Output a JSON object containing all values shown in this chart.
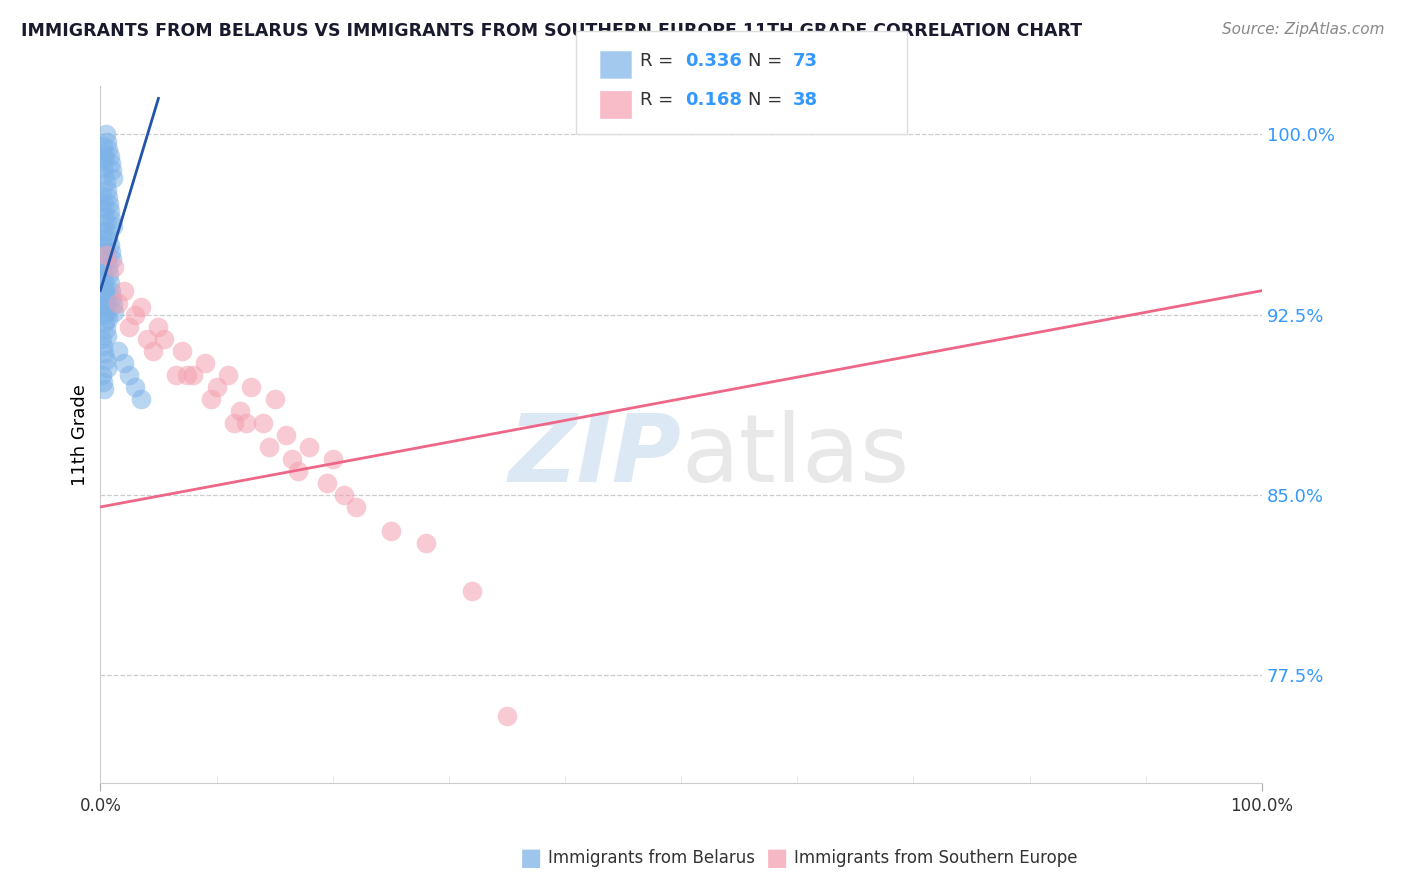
{
  "title": "IMMIGRANTS FROM BELARUS VS IMMIGRANTS FROM SOUTHERN EUROPE 11TH GRADE CORRELATION CHART",
  "source": "Source: ZipAtlas.com",
  "ylabel": "11th Grade",
  "y_ticks": [
    77.5,
    85.0,
    92.5,
    100.0
  ],
  "blue_color": "#7EB3E8",
  "pink_color": "#F4A0B0",
  "trendline_blue": "#2255AA",
  "trendline_pink": "#EE6688",
  "legend_r_blue": "0.336",
  "legend_n_blue": "73",
  "legend_r_pink": "0.168",
  "legend_n_pink": "38",
  "blue_scatter_x": [
    0.2,
    0.3,
    0.4,
    0.5,
    0.6,
    0.7,
    0.8,
    0.9,
    1.0,
    1.1,
    0.15,
    0.25,
    0.35,
    0.45,
    0.55,
    0.65,
    0.75,
    0.85,
    0.95,
    1.05,
    0.1,
    0.2,
    0.3,
    0.4,
    0.5,
    0.6,
    0.7,
    0.8,
    0.9,
    1.0,
    0.15,
    0.25,
    0.35,
    0.45,
    0.55,
    0.65,
    0.75,
    0.1,
    0.2,
    0.3,
    0.4,
    0.5,
    0.6,
    0.3,
    0.4,
    0.5,
    0.6,
    0.7,
    1.5,
    2.0,
    2.5,
    3.0,
    3.5,
    0.8,
    0.9,
    1.0,
    1.1,
    1.2,
    0.2,
    0.3,
    0.4,
    0.5,
    0.6,
    0.15,
    0.25,
    0.35,
    0.45,
    0.55,
    0.1,
    0.2,
    0.3
  ],
  "blue_scatter_y": [
    99.5,
    99.2,
    99.0,
    100.0,
    99.7,
    99.4,
    99.1,
    98.8,
    98.5,
    98.2,
    98.9,
    98.6,
    98.3,
    98.0,
    97.7,
    97.4,
    97.1,
    96.8,
    96.5,
    96.2,
    97.5,
    97.2,
    96.9,
    96.6,
    96.3,
    96.0,
    95.7,
    95.4,
    95.1,
    94.8,
    96.0,
    95.7,
    95.4,
    95.1,
    94.8,
    94.5,
    94.2,
    94.5,
    94.2,
    93.9,
    93.6,
    93.3,
    93.0,
    93.5,
    93.2,
    92.9,
    92.6,
    92.3,
    91.0,
    90.5,
    90.0,
    89.5,
    89.0,
    93.8,
    93.5,
    93.2,
    92.9,
    92.6,
    92.8,
    92.5,
    92.2,
    91.9,
    91.6,
    91.5,
    91.2,
    90.9,
    90.6,
    90.3,
    90.0,
    89.7,
    89.4
  ],
  "pink_scatter_x": [
    0.5,
    1.2,
    2.0,
    3.5,
    5.0,
    7.0,
    9.0,
    11.0,
    13.0,
    15.0,
    1.5,
    3.0,
    5.5,
    8.0,
    10.0,
    12.0,
    14.0,
    16.0,
    18.0,
    20.0,
    2.5,
    4.5,
    6.5,
    9.5,
    11.5,
    14.5,
    17.0,
    19.5,
    22.0,
    25.0,
    4.0,
    7.5,
    12.5,
    16.5,
    21.0,
    28.0,
    32.0,
    35.0
  ],
  "pink_scatter_y": [
    95.0,
    94.5,
    93.5,
    92.8,
    92.0,
    91.0,
    90.5,
    90.0,
    89.5,
    89.0,
    93.0,
    92.5,
    91.5,
    90.0,
    89.5,
    88.5,
    88.0,
    87.5,
    87.0,
    86.5,
    92.0,
    91.0,
    90.0,
    89.0,
    88.0,
    87.0,
    86.0,
    85.5,
    84.5,
    83.5,
    91.5,
    90.0,
    88.0,
    86.5,
    85.0,
    83.0,
    81.0,
    75.8
  ],
  "blue_trend_x": [
    0,
    5
  ],
  "blue_trend_y": [
    93.5,
    101.5
  ],
  "pink_trend_x": [
    0,
    100
  ],
  "pink_trend_y": [
    84.5,
    93.5
  ],
  "xlim": [
    0,
    100
  ],
  "ylim": [
    73,
    102
  ]
}
